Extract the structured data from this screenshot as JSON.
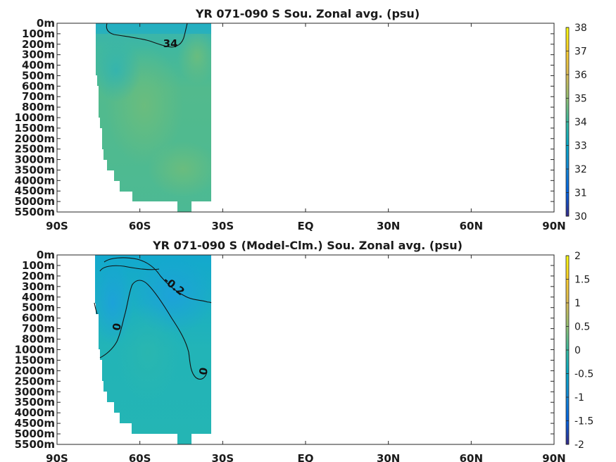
{
  "chart_data": [
    {
      "type": "heatmap",
      "title": "YR 071-090 S Sou. Zonal avg. (psu)",
      "xlabel": "",
      "ylabel": "",
      "x_ticks": [
        "90S",
        "60S",
        "30S",
        "EQ",
        "30N",
        "60N",
        "90N"
      ],
      "x_range": [
        -90,
        90
      ],
      "y_ticks": [
        "0m",
        "100m",
        "200m",
        "300m",
        "400m",
        "500m",
        "600m",
        "700m",
        "800m",
        "1000m",
        "1500m",
        "2000m",
        "2500m",
        "3000m",
        "3500m",
        "4000m",
        "4500m",
        "5000m",
        "5500m"
      ],
      "colorbar": {
        "min": 30,
        "max": 38,
        "ticks": [
          "30",
          "31",
          "32",
          "33",
          "34",
          "35",
          "36",
          "37",
          "38"
        ]
      },
      "colormap": "parula",
      "data_extent_lat": [
        -78,
        -35
      ],
      "approx_field": {
        "surface_range": [
          33.8,
          34.2
        ],
        "interior_value": 34.7,
        "max_value": 35.0
      },
      "contours": [
        {
          "level": 34,
          "label": "34"
        }
      ]
    },
    {
      "type": "heatmap",
      "title": "YR 071-090 S (Model-Clm.) Sou. Zonal avg. (psu)",
      "xlabel": "",
      "ylabel": "",
      "x_ticks": [
        "90S",
        "60S",
        "30S",
        "EQ",
        "30N",
        "60N",
        "90N"
      ],
      "x_range": [
        -90,
        90
      ],
      "y_ticks": [
        "0m",
        "100m",
        "200m",
        "300m",
        "400m",
        "500m",
        "600m",
        "700m",
        "800m",
        "1000m",
        "1500m",
        "2000m",
        "2500m",
        "3000m",
        "3500m",
        "4000m",
        "4500m",
        "5000m",
        "5500m"
      ],
      "colorbar": {
        "min": -2,
        "max": 2,
        "ticks": [
          "-2",
          "-1.5",
          "-1",
          "-0.5",
          "0",
          "0.5",
          "1",
          "1.5",
          "2"
        ]
      },
      "colormap": "parula",
      "data_extent_lat": [
        -78,
        -35
      ],
      "approx_field": {
        "upper_range": [
          -0.4,
          -0.2
        ],
        "deep_value": 0.0
      },
      "contours": [
        {
          "level": -0.2,
          "label": "-0.2"
        },
        {
          "level": 0,
          "label": "0"
        }
      ]
    }
  ]
}
